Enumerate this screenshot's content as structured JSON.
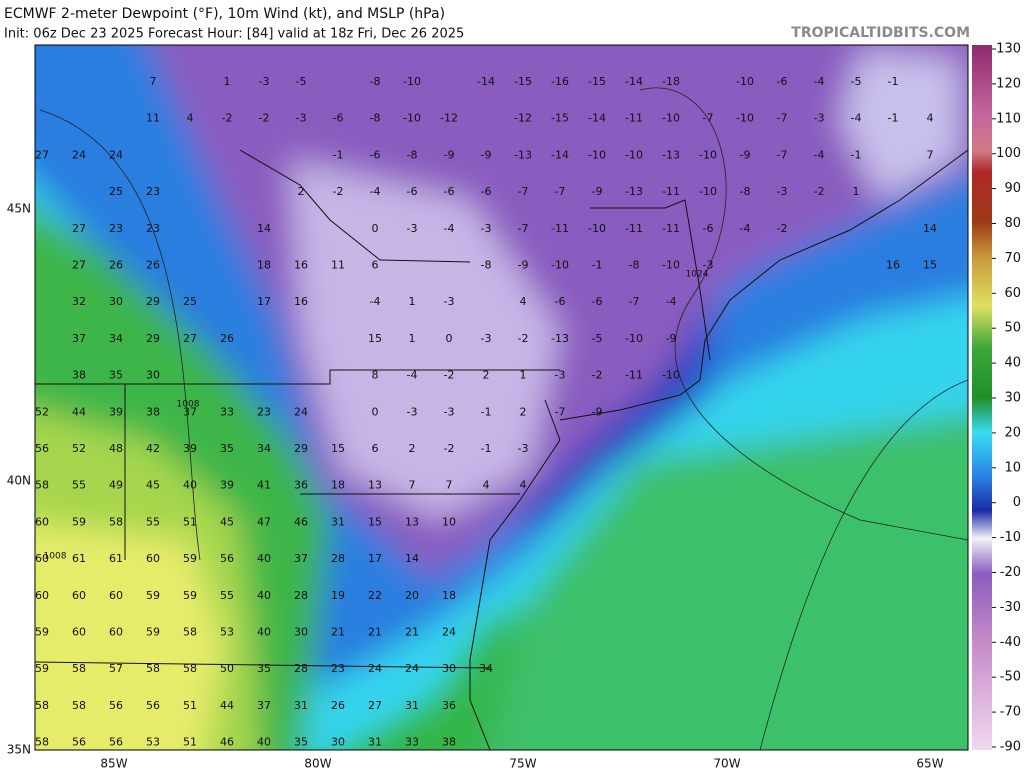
{
  "header": {
    "title": "ECMWF 2-meter Dewpoint (°F), 10m Wind (kt), and MSLP (hPa)",
    "subtitle": "Init: 06z Dec 23 2025   Forecast Hour: [84]   valid at 18z Fri, Dec 26 2025",
    "watermark": "TROPICALTIDBITS.COM"
  },
  "map": {
    "lat_labels": [
      "45N",
      "40N",
      "35N"
    ],
    "lon_labels": [
      "85W",
      "80W",
      "75W",
      "70W",
      "65W"
    ],
    "isobar_labels": [
      1008,
      1024,
      1008
    ],
    "dewpoints": [
      [
        null,
        null,
        null,
        7,
        null,
        1,
        -3,
        -5,
        null,
        -8,
        -10,
        null,
        -14,
        -15,
        -16,
        -15,
        -14,
        -18,
        null,
        -10,
        -6,
        -4,
        -5,
        -1
      ],
      [
        null,
        null,
        null,
        11,
        4,
        -2,
        -2,
        -3,
        -6,
        -8,
        -10,
        -12,
        null,
        -12,
        -15,
        -14,
        -11,
        -10,
        -7,
        -10,
        -7,
        -3,
        -4,
        -1,
        4
      ],
      [
        27,
        24,
        24,
        null,
        null,
        null,
        null,
        null,
        -1,
        -6,
        -8,
        -9,
        -9,
        -13,
        -14,
        -10,
        -10,
        -13,
        -10,
        -9,
        -7,
        -4,
        -1,
        null,
        7
      ],
      [
        null,
        null,
        25,
        23,
        null,
        null,
        null,
        2,
        -2,
        -4,
        -6,
        -6,
        -6,
        -7,
        -7,
        -9,
        -13,
        -11,
        -10,
        -8,
        -3,
        -2,
        1
      ],
      [
        null,
        27,
        23,
        23,
        null,
        null,
        14,
        null,
        null,
        0,
        -3,
        -4,
        -3,
        -7,
        -11,
        -10,
        -11,
        -11,
        -6,
        -4,
        -2,
        null,
        null,
        null,
        14
      ],
      [
        null,
        27,
        26,
        26,
        null,
        null,
        18,
        16,
        11,
        6,
        null,
        null,
        -8,
        -9,
        -10,
        -1,
        -8,
        -10,
        -3,
        null,
        null,
        null,
        null,
        16,
        15
      ],
      [
        null,
        32,
        30,
        29,
        25,
        null,
        17,
        16,
        null,
        -4,
        1,
        -3,
        null,
        4,
        -6,
        -6,
        -7,
        -4
      ],
      [
        null,
        37,
        34,
        29,
        27,
        26,
        null,
        null,
        null,
        15,
        1,
        0,
        -3,
        -2,
        -13,
        -5,
        -10,
        -9
      ],
      [
        null,
        38,
        35,
        30,
        null,
        null,
        null,
        null,
        null,
        8,
        -4,
        -2,
        2,
        1,
        -3,
        -2,
        -11,
        -10
      ],
      [
        52,
        44,
        39,
        38,
        37,
        33,
        23,
        24,
        null,
        0,
        -3,
        -3,
        -1,
        2,
        -7,
        -9
      ],
      [
        56,
        52,
        48,
        42,
        39,
        35,
        34,
        29,
        15,
        6,
        2,
        -2,
        -1,
        -3
      ],
      [
        58,
        55,
        49,
        45,
        40,
        39,
        41,
        36,
        18,
        13,
        7,
        7,
        4,
        4
      ],
      [
        60,
        59,
        58,
        55,
        51,
        45,
        47,
        46,
        31,
        15,
        13,
        10
      ],
      [
        60,
        61,
        61,
        60,
        59,
        56,
        40,
        37,
        28,
        17,
        14
      ],
      [
        60,
        60,
        60,
        59,
        59,
        55,
        40,
        28,
        19,
        22,
        20,
        18
      ],
      [
        59,
        60,
        60,
        59,
        58,
        53,
        40,
        30,
        21,
        21,
        21,
        24
      ],
      [
        59,
        58,
        57,
        58,
        58,
        50,
        35,
        28,
        23,
        24,
        24,
        30,
        34
      ],
      [
        58,
        58,
        56,
        56,
        51,
        44,
        37,
        31,
        26,
        27,
        31,
        36
      ],
      [
        58,
        56,
        56,
        53,
        51,
        46,
        40,
        35,
        30,
        31,
        33,
        38
      ]
    ]
  },
  "colorbar": {
    "ticks": [
      130,
      120,
      110,
      100,
      90,
      80,
      70,
      60,
      50,
      40,
      30,
      20,
      10,
      0,
      -10,
      -20,
      -30,
      -40,
      -50,
      -70,
      -90
    ]
  }
}
